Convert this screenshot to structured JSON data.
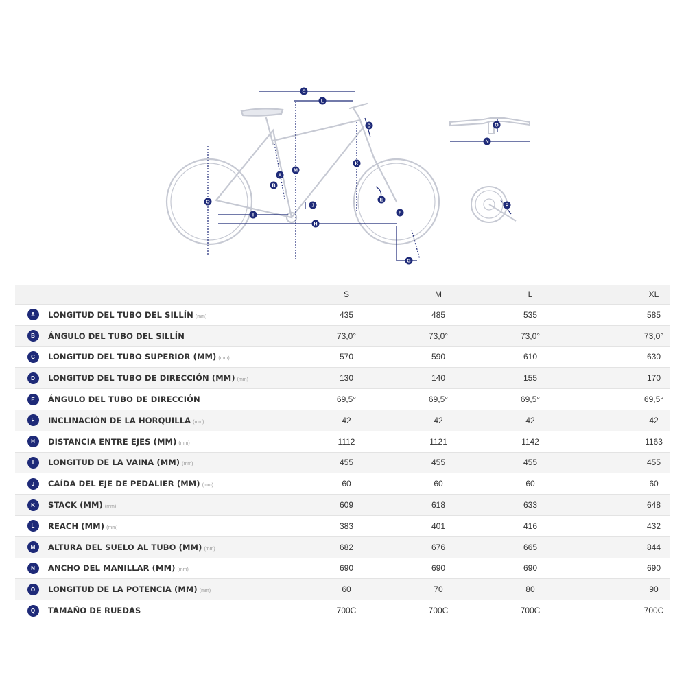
{
  "diagram": {
    "markers": [
      "A",
      "B",
      "C",
      "D",
      "E",
      "F",
      "G",
      "H",
      "I",
      "J",
      "K",
      "L",
      "M",
      "N",
      "O",
      "P"
    ]
  },
  "table": {
    "sizes": [
      "S",
      "M",
      "L",
      "XL"
    ],
    "rows": [
      {
        "id": "A",
        "label": "LONGITUD DEL TUBO DEL SILLÍN",
        "unit": "(mm)",
        "values": [
          "435",
          "485",
          "535",
          "585"
        ]
      },
      {
        "id": "B",
        "label": "ÁNGULO DEL TUBO DEL SILLÍN",
        "unit": "",
        "values": [
          "73,0°",
          "73,0°",
          "73,0°",
          "73,0°"
        ]
      },
      {
        "id": "C",
        "label": "LONGITUD DEL TUBO SUPERIOR (MM)",
        "unit": "(mm)",
        "values": [
          "570",
          "590",
          "610",
          "630"
        ]
      },
      {
        "id": "D",
        "label": "LONGITUD DEL TUBO DE DIRECCIÓN (MM)",
        "unit": "(mm)",
        "values": [
          "130",
          "140",
          "155",
          "170"
        ]
      },
      {
        "id": "E",
        "label": "ÁNGULO DEL TUBO DE DIRECCIÓN",
        "unit": "",
        "values": [
          "69,5°",
          "69,5°",
          "69,5°",
          "69,5°"
        ]
      },
      {
        "id": "F",
        "label": "INCLINACIÓN DE LA HORQUILLA",
        "unit": "(mm)",
        "values": [
          "42",
          "42",
          "42",
          "42"
        ]
      },
      {
        "id": "H",
        "label": "DISTANCIA ENTRE EJES (MM)",
        "unit": "(mm)",
        "values": [
          "1112",
          "1121",
          "1142",
          "1163"
        ]
      },
      {
        "id": "I",
        "label": "LONGITUD DE LA VAINA (MM)",
        "unit": "(mm)",
        "values": [
          "455",
          "455",
          "455",
          "455"
        ]
      },
      {
        "id": "J",
        "label": "CAÍDA DEL EJE DE PEDALIER (MM)",
        "unit": "(mm)",
        "values": [
          "60",
          "60",
          "60",
          "60"
        ]
      },
      {
        "id": "K",
        "label": "STACK (MM)",
        "unit": "(mm)",
        "values": [
          "609",
          "618",
          "633",
          "648"
        ]
      },
      {
        "id": "L",
        "label": "REACH (MM)",
        "unit": "(mm)",
        "values": [
          "383",
          "401",
          "416",
          "432"
        ]
      },
      {
        "id": "M",
        "label": "ALTURA DEL SUELO AL TUBO (MM)",
        "unit": "(mm)",
        "values": [
          "682",
          "676",
          "665",
          "844"
        ]
      },
      {
        "id": "N",
        "label": "ANCHO DEL MANILLAR (MM)",
        "unit": "(mm)",
        "values": [
          "690",
          "690",
          "690",
          "690"
        ]
      },
      {
        "id": "O",
        "label": "LONGITUD DE LA POTENCIA (MM)",
        "unit": "(mm)",
        "values": [
          "60",
          "70",
          "80",
          "90"
        ]
      },
      {
        "id": "Q",
        "label": "TAMAÑO DE RUEDAS",
        "unit": "",
        "values": [
          "700C",
          "700C",
          "700C",
          "700C"
        ]
      }
    ]
  },
  "colors": {
    "accent": "#1e2a78",
    "frame": "#c6c9d3",
    "row_alt": "#f4f4f4"
  }
}
